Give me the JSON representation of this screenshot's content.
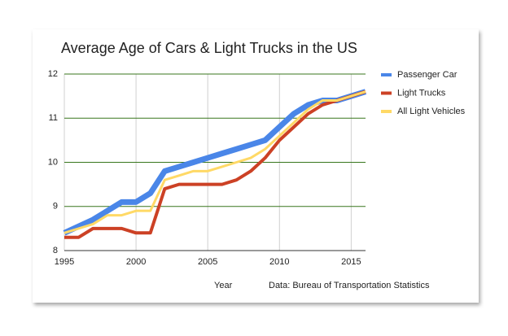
{
  "chart_data": {
    "type": "line",
    "title": "Average Age of Cars & Light Trucks in the US",
    "x_label": "Year",
    "source": "Data: Bureau of Transportation Statistics",
    "x": [
      1995,
      1996,
      1997,
      1998,
      1999,
      2000,
      2001,
      2002,
      2003,
      2004,
      2005,
      2006,
      2007,
      2008,
      2009,
      2010,
      2011,
      2012,
      2013,
      2014,
      2015,
      2016
    ],
    "series": [
      {
        "name": "Passenger Car",
        "color": "#4a86e8",
        "values": [
          8.4,
          8.55,
          8.7,
          8.9,
          9.1,
          9.1,
          9.3,
          9.8,
          9.9,
          10.0,
          10.1,
          10.2,
          10.3,
          10.4,
          10.5,
          10.8,
          11.1,
          11.3,
          11.4,
          11.4,
          11.5,
          11.6
        ]
      },
      {
        "name": "Light Trucks",
        "color": "#cc4125",
        "values": [
          8.3,
          8.3,
          8.5,
          8.5,
          8.5,
          8.4,
          8.4,
          9.4,
          9.5,
          9.5,
          9.5,
          9.5,
          9.6,
          9.8,
          10.1,
          10.5,
          10.8,
          11.1,
          11.3,
          11.4,
          11.5,
          11.6
        ]
      },
      {
        "name": "All Light Vehicles",
        "color": "#ffd966",
        "values": [
          8.4,
          8.5,
          8.6,
          8.8,
          8.8,
          8.9,
          8.9,
          9.6,
          9.7,
          9.8,
          9.8,
          9.9,
          10.0,
          10.1,
          10.3,
          10.6,
          10.9,
          11.2,
          11.4,
          11.4,
          11.5,
          11.6
        ]
      }
    ],
    "xlim": [
      1995,
      2016
    ],
    "xticks": [
      1995,
      2000,
      2005,
      2010,
      2015
    ],
    "ylim": [
      8,
      12
    ],
    "yticks": [
      8,
      9,
      10,
      11,
      12
    ],
    "grid": true,
    "legend": "right"
  }
}
